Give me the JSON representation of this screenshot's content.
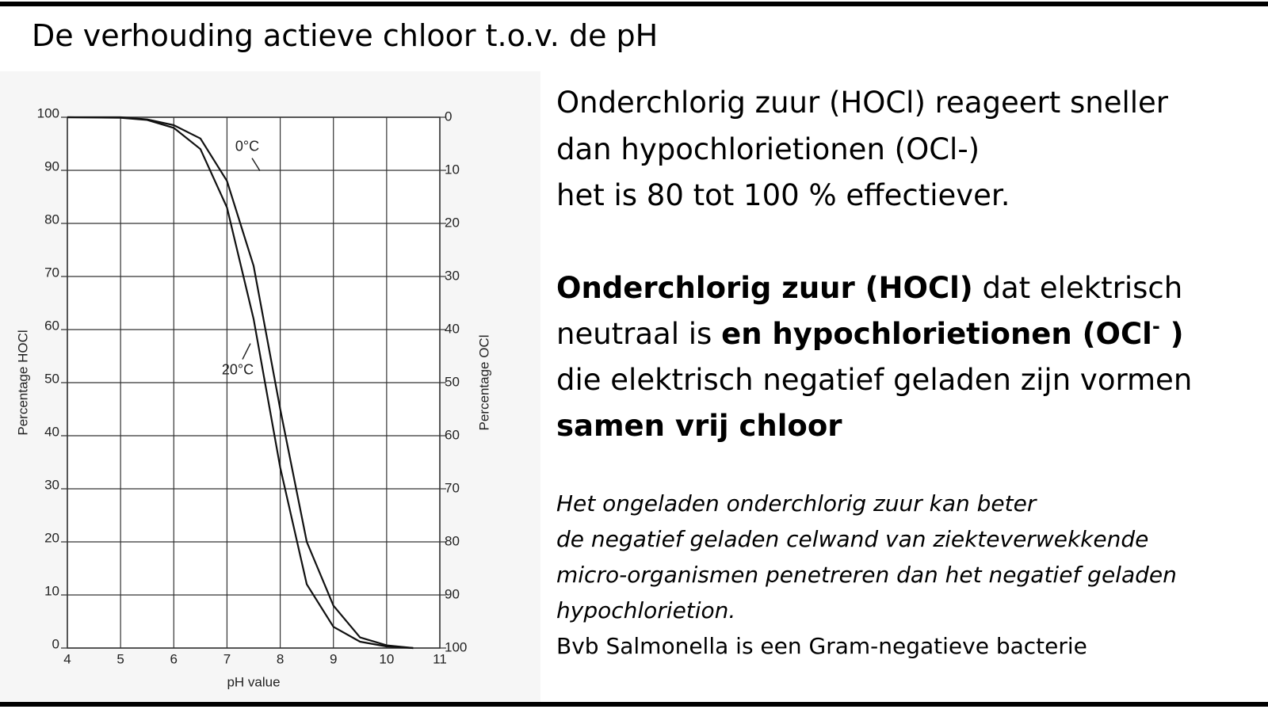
{
  "title": "De verhouding actieve chloor  t.o.v. de pH",
  "chart_data": {
    "type": "line",
    "x_label": "pH value",
    "y_label": "Percentage HOCl",
    "y2_label": "Percentage OCl",
    "x": [
      4,
      5,
      5.5,
      6,
      6.5,
      7,
      7.5,
      8,
      8.5,
      9,
      9.5,
      10,
      10.5
    ],
    "series": [
      {
        "name": "20°C",
        "color": "#111111",
        "values": [
          100,
          99.9,
          99.5,
          98,
          94,
          83,
          62,
          34,
          12,
          4,
          1.2,
          0.3,
          0
        ]
      },
      {
        "name": "0°C",
        "color": "#111111",
        "values": [
          100,
          100,
          99.6,
          98.5,
          96,
          88,
          72,
          45,
          20,
          8,
          2,
          0.5,
          0
        ]
      }
    ],
    "xlim": [
      4,
      11
    ],
    "xticks": [
      4,
      5,
      6,
      7,
      8,
      9,
      10,
      11
    ],
    "ylim": [
      0,
      100
    ],
    "yticks": [
      0,
      10,
      20,
      30,
      40,
      50,
      60,
      70,
      80,
      90,
      100
    ],
    "y2lim": [
      100,
      0
    ],
    "y2ticks": [
      0,
      10,
      20,
      30,
      40,
      50,
      60,
      70,
      80,
      90,
      100
    ],
    "grid": true
  },
  "text": {
    "p1": [
      "Onderchlorig zuur (HOCl) reageert sneller",
      "dan hypochlorietionen (OCl-)",
      "het is 80 tot 100 % effectiever."
    ],
    "p2": {
      "bold1": "Onderchlorig zuur (HOCl)",
      "rest1": " dat elektrisch",
      "line2a": "neutraal is ",
      "line2b": "en hypochlorietionen (OCl",
      "sup": "-",
      "line2c": " )",
      "line3": "die elektrisch negatief geladen zijn vormen",
      "line4": "samen vrij chloor"
    },
    "p3": [
      "Het ongeladen onderchlorig zuur kan beter",
      "de negatief geladen celwand van ziekteverwekkende",
      "micro-organismen penetreren dan het negatief geladen",
      "hypochlorietion."
    ],
    "p4": "Bvb Salmonella  is een Gram-negatieve bacterie"
  }
}
